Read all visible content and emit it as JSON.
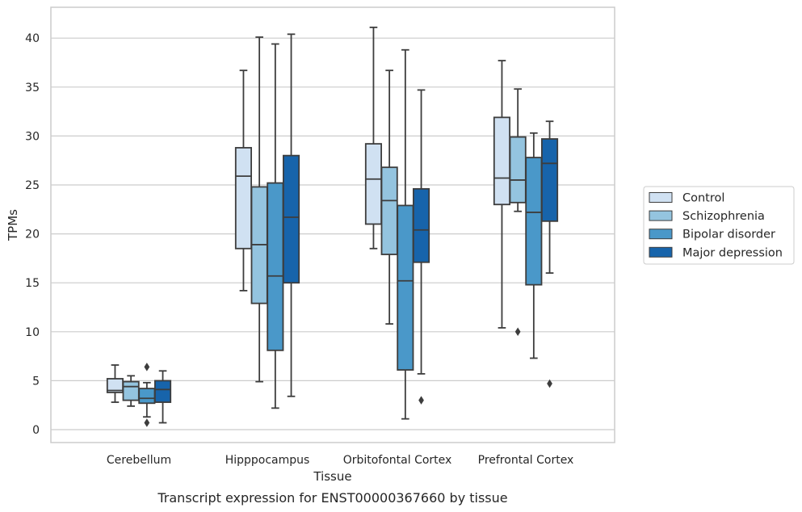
{
  "caption": "Transcript expression for ENST00000367660 by tissue",
  "chart_data": {
    "type": "box",
    "title": "",
    "xlabel": "Tissue",
    "ylabel": "TPMs",
    "ylim": [
      -1.3,
      43.2
    ],
    "yticks": [
      0,
      5,
      10,
      15,
      20,
      25,
      30,
      35,
      40
    ],
    "grid": true,
    "legend_placement": "right",
    "categories": [
      "Cerebellum",
      "Hipppocampus",
      "Orbitofontal Cortex",
      "Prefrontal Cortex"
    ],
    "series": [
      {
        "name": "Control",
        "color": "#d0e1f2",
        "boxes": [
          {
            "whislo": 2.8,
            "q1": 3.8,
            "med": 4.0,
            "q3": 5.2,
            "whishi": 6.6,
            "fliers": []
          },
          {
            "whislo": 14.2,
            "q1": 18.5,
            "med": 25.9,
            "q3": 28.8,
            "whishi": 36.7,
            "fliers": []
          },
          {
            "whislo": 18.5,
            "q1": 21.0,
            "med": 25.6,
            "q3": 29.2,
            "whishi": 41.1,
            "fliers": []
          },
          {
            "whislo": 10.4,
            "q1": 23.0,
            "med": 25.7,
            "q3": 31.9,
            "whishi": 37.7,
            "fliers": []
          }
        ]
      },
      {
        "name": "Schizophrenia",
        "color": "#94c4df",
        "boxes": [
          {
            "whislo": 2.4,
            "q1": 3.0,
            "med": 4.4,
            "q3": 4.9,
            "whishi": 5.5,
            "fliers": []
          },
          {
            "whislo": 4.9,
            "q1": 12.9,
            "med": 18.9,
            "q3": 24.8,
            "whishi": 40.1,
            "fliers": []
          },
          {
            "whislo": 10.8,
            "q1": 17.9,
            "med": 23.4,
            "q3": 26.8,
            "whishi": 36.7,
            "fliers": []
          },
          {
            "whislo": 22.3,
            "q1": 23.2,
            "med": 25.5,
            "q3": 29.9,
            "whishi": 34.8,
            "fliers": [
              10.0
            ]
          }
        ]
      },
      {
        "name": "Bipolar disorder",
        "color": "#4a98c9",
        "boxes": [
          {
            "whislo": 1.3,
            "q1": 2.7,
            "med": 3.2,
            "q3": 4.2,
            "whishi": 4.8,
            "fliers": [
              6.4,
              0.7
            ]
          },
          {
            "whislo": 2.2,
            "q1": 8.1,
            "med": 15.7,
            "q3": 25.2,
            "whishi": 39.4,
            "fliers": []
          },
          {
            "whislo": 1.1,
            "q1": 6.1,
            "med": 15.2,
            "q3": 22.9,
            "whishi": 38.8,
            "fliers": []
          },
          {
            "whislo": 7.3,
            "q1": 14.8,
            "med": 22.2,
            "q3": 27.8,
            "whishi": 30.3,
            "fliers": []
          }
        ]
      },
      {
        "name": "Major depression",
        "color": "#1764ab",
        "boxes": [
          {
            "whislo": 0.7,
            "q1": 2.8,
            "med": 4.1,
            "q3": 5.0,
            "whishi": 6.0,
            "fliers": []
          },
          {
            "whislo": 3.4,
            "q1": 15.0,
            "med": 21.7,
            "q3": 28.0,
            "whishi": 40.4,
            "fliers": []
          },
          {
            "whislo": 5.7,
            "q1": 17.1,
            "med": 20.4,
            "q3": 24.6,
            "whishi": 34.7,
            "fliers": [
              3.0
            ]
          },
          {
            "whislo": 16.0,
            "q1": 21.3,
            "med": 27.2,
            "q3": 29.7,
            "whishi": 31.5,
            "fliers": [
              4.7
            ]
          }
        ]
      }
    ]
  }
}
